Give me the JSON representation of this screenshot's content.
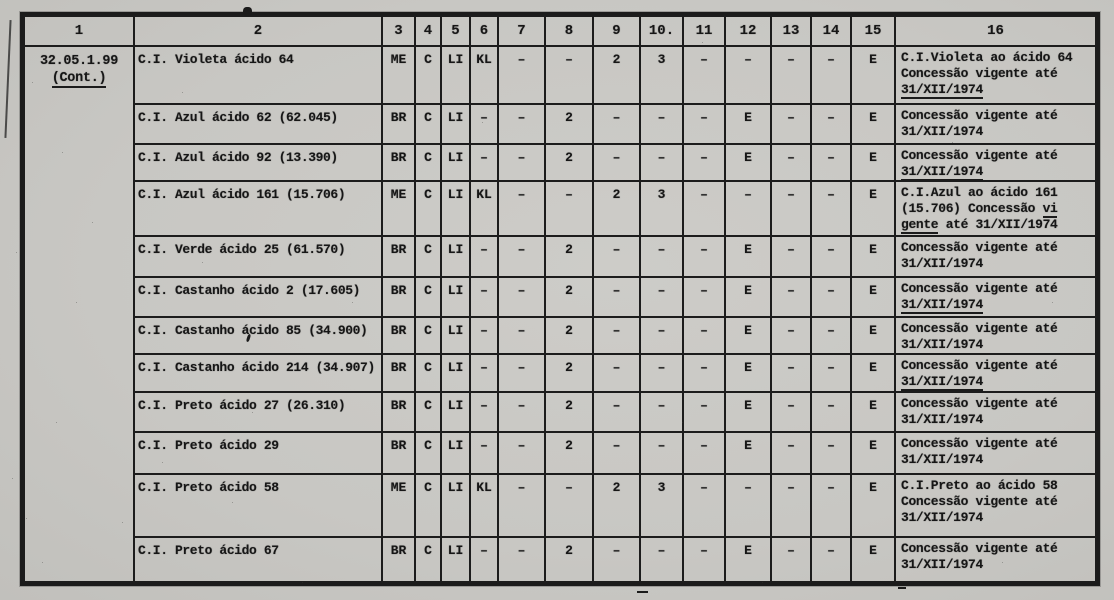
{
  "document": {
    "type": "scanned tariff/concession table (Portuguese)",
    "id_code": "32.05.1.99",
    "id_cont": "(Cont.)"
  },
  "table": {
    "headers": [
      "1",
      "2",
      "3",
      "4",
      "5",
      "6",
      "7",
      "8",
      "9",
      "10.",
      "11",
      "12",
      "13",
      "14",
      "15",
      "16"
    ],
    "rows": [
      {
        "name": "C.I. Violeta ácido 64",
        "codes": [
          "ME",
          "C",
          "LI",
          "KL",
          "-",
          "-",
          "2",
          "3",
          "-",
          "-",
          "-",
          "-",
          "E"
        ],
        "note": [
          [
            {
              "t": "C.I.Violeta ao ácido 64"
            }
          ],
          [
            {
              "t": "Concessão vigente até"
            }
          ],
          [
            {
              "t": "31/XII/1974",
              "u": 1
            }
          ]
        ]
      },
      {
        "name": "C.I. Azul ácido 62 (62.045)",
        "codes": [
          "BR",
          "C",
          "LI",
          "-",
          "-",
          "2",
          "-",
          "-",
          "-",
          "E",
          "-",
          "-",
          "E"
        ],
        "note": [
          [
            {
              "t": "Concessão vigente até"
            }
          ],
          [
            {
              "t": "31/XII/1974"
            }
          ]
        ]
      },
      {
        "name": "C.I. Azul ácido 92 (13.390)",
        "codes": [
          "BR",
          "C",
          "LI",
          "-",
          "-",
          "2",
          "-",
          "-",
          "-",
          "E",
          "-",
          "-",
          "E"
        ],
        "note": [
          [
            {
              "t": "Concessão vigente até"
            }
          ],
          [
            {
              "t": "31/XII/1974",
              "u": 1
            }
          ]
        ]
      },
      {
        "name": "C.I. Azul ácido 161 (15.706)",
        "codes": [
          "ME",
          "C",
          "LI",
          "KL",
          "-",
          "-",
          "2",
          "3",
          "-",
          "-",
          "-",
          "-",
          "E"
        ],
        "note": [
          [
            {
              "t": "C.I.Azul ao ácido 161"
            }
          ],
          [
            {
              "t": "(15.706)  Concessão "
            },
            {
              "t": "vi",
              "u": 1
            }
          ],
          [
            {
              "t": "gente",
              "u": 1
            },
            {
              "t": " até 31/XII/1974"
            }
          ]
        ]
      },
      {
        "name": "C.I. Verde ácido 25 (61.570)",
        "codes": [
          "BR",
          "C",
          "LI",
          "-",
          "-",
          "2",
          "-",
          "-",
          "-",
          "E",
          "-",
          "-",
          "E"
        ],
        "note": [
          [
            {
              "t": "Concessão vigente até"
            }
          ],
          [
            {
              "t": "31/XII/1974"
            }
          ]
        ]
      },
      {
        "name": "C.I. Castanho ácido 2 (17.605)",
        "codes": [
          "BR",
          "C",
          "LI",
          "-",
          "-",
          "2",
          "-",
          "-",
          "-",
          "E",
          "-",
          "-",
          "E"
        ],
        "note": [
          [
            {
              "t": "Concessão vigente até"
            }
          ],
          [
            {
              "t": "31/XII/1974",
              "u": 1
            }
          ]
        ]
      },
      {
        "name": "C.I. Castanho ácido 85 (34.900)",
        "codes": [
          "BR",
          "C",
          "LI",
          "-",
          "-",
          "2",
          "-",
          "-",
          "-",
          "E",
          "-",
          "-",
          "E"
        ],
        "note": [
          [
            {
              "t": "Concessão vigente até"
            }
          ],
          [
            {
              "t": "31/XII/1974"
            }
          ]
        ]
      },
      {
        "name": "C.I. Castanho ácido 214 (34.907)",
        "codes": [
          "BR",
          "C",
          "LI",
          "-",
          "-",
          "2",
          "-",
          "-",
          "-",
          "E",
          "-",
          "-",
          "E"
        ],
        "note": [
          [
            {
              "t": "Concessão vigente até"
            }
          ],
          [
            {
              "t": "31/XII/1974",
              "u": 1
            }
          ]
        ]
      },
      {
        "name": "C.I. Preto ácido 27 (26.310)",
        "codes": [
          "BR",
          "C",
          "LI",
          "-",
          "-",
          "2",
          "-",
          "-",
          "-",
          "E",
          "-",
          "-",
          "E"
        ],
        "note": [
          [
            {
              "t": "Concessão vigente até"
            }
          ],
          [
            {
              "t": "31/XII/1974"
            }
          ]
        ]
      },
      {
        "name": "C.I. Preto ácido 29",
        "codes": [
          "BR",
          "C",
          "LI",
          "-",
          "-",
          "2",
          "-",
          "-",
          "-",
          "E",
          "-",
          "-",
          "E"
        ],
        "note": [
          [
            {
              "t": "Concessão vigente até"
            }
          ],
          [
            {
              "t": "31/XII/1974"
            }
          ]
        ]
      },
      {
        "name": "C.I. Preto ácido 58",
        "codes": [
          "ME",
          "C",
          "LI",
          "KL",
          "-",
          "-",
          "2",
          "3",
          "-",
          "-",
          "-",
          "-",
          "E"
        ],
        "note": [
          [
            {
              "t": "C.I.Preto ao ácido 58"
            }
          ],
          [
            {
              "t": "Concessão vigente até"
            }
          ],
          [
            {
              "t": "31/XII/1974"
            }
          ]
        ]
      },
      {
        "name": "C.I. Preto ácido 67",
        "codes": [
          "BR",
          "C",
          "LI",
          "-",
          "-",
          "2",
          "-",
          "-",
          "-",
          "E",
          "-",
          "-",
          "E"
        ],
        "note": [
          [
            {
              "t": "Concessão vigente até"
            }
          ],
          [
            {
              "t": "31/XII/1974"
            }
          ]
        ]
      }
    ]
  },
  "colors": {
    "paper": "#c8c7c3",
    "ink": "#1b1b1b"
  }
}
